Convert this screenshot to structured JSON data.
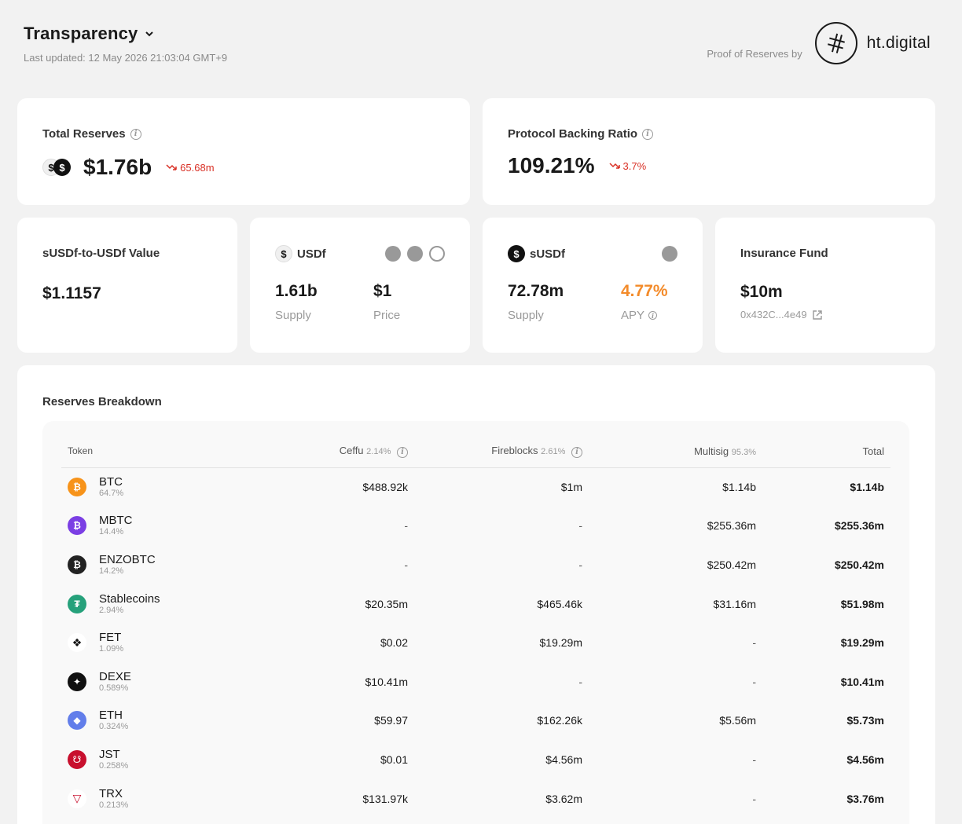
{
  "header": {
    "title": "Transparency",
    "last_updated": "Last updated: 12 May 2026 21:03:04 GMT+9",
    "proof_label": "Proof of Reserves by",
    "partner_name": "ht.digital"
  },
  "cards": {
    "total_reserves": {
      "label": "Total Reserves",
      "value": "$1.76b",
      "change": "65.68m"
    },
    "backing_ratio": {
      "label": "Protocol Backing Ratio",
      "value": "109.21%",
      "change": "3.7%"
    },
    "susdf_value": {
      "label": "sUSDf-to-USDf Value",
      "value": "$1.1157"
    },
    "usdf": {
      "label": "USDf",
      "supply": "1.61b",
      "supply_label": "Supply",
      "price": "$1",
      "price_label": "Price"
    },
    "susdf": {
      "label": "sUSDf",
      "supply": "72.78m",
      "supply_label": "Supply",
      "apy": "4.77%",
      "apy_label": "APY"
    },
    "insurance": {
      "label": "Insurance Fund",
      "value": "$10m",
      "address": "0x432C...4e49"
    }
  },
  "breakdown": {
    "title": "Reserves Breakdown",
    "columns": {
      "token": "Token",
      "ceffu": "Ceffu",
      "ceffu_pct": "2.14%",
      "fireblocks": "Fireblocks",
      "fireblocks_pct": "2.61%",
      "multisig": "Multisig",
      "multisig_pct": "95.3%",
      "total": "Total"
    },
    "rows": [
      {
        "name": "BTC",
        "pct": "64.7%",
        "ceffu": "$488.92k",
        "fireblocks": "$1m",
        "multisig": "$1.14b",
        "total": "$1.14b",
        "color": "#f7931a",
        "glyph": "₿"
      },
      {
        "name": "MBTC",
        "pct": "14.4%",
        "ceffu": "-",
        "fireblocks": "-",
        "multisig": "$255.36m",
        "total": "$255.36m",
        "color": "#7b3fe4",
        "glyph": "₿"
      },
      {
        "name": "ENZOBTC",
        "pct": "14.2%",
        "ceffu": "-",
        "fireblocks": "-",
        "multisig": "$250.42m",
        "total": "$250.42m",
        "color": "#222222",
        "glyph": "₿"
      },
      {
        "name": "Stablecoins",
        "pct": "2.94%",
        "ceffu": "$20.35m",
        "fireblocks": "$465.46k",
        "multisig": "$31.16m",
        "total": "$51.98m",
        "color": "#26a17b",
        "glyph": "₮"
      },
      {
        "name": "FET",
        "pct": "1.09%",
        "ceffu": "$0.02",
        "fireblocks": "$19.29m",
        "multisig": "-",
        "total": "$19.29m",
        "color": "#ffffff",
        "glyph": "❖"
      },
      {
        "name": "DEXE",
        "pct": "0.589%",
        "ceffu": "$10.41m",
        "fireblocks": "-",
        "multisig": "-",
        "total": "$10.41m",
        "color": "#111111",
        "glyph": "✦"
      },
      {
        "name": "ETH",
        "pct": "0.324%",
        "ceffu": "$59.97",
        "fireblocks": "$162.26k",
        "multisig": "$5.56m",
        "total": "$5.73m",
        "color": "#627eea",
        "glyph": "◆"
      },
      {
        "name": "JST",
        "pct": "0.258%",
        "ceffu": "$0.01",
        "fireblocks": "$4.56m",
        "multisig": "-",
        "total": "$4.56m",
        "color": "#c8102e",
        "glyph": "☋"
      },
      {
        "name": "TRX",
        "pct": "0.213%",
        "ceffu": "$131.97k",
        "fireblocks": "$3.62m",
        "multisig": "-",
        "total": "$3.76m",
        "color": "#ffffff",
        "glyph": "▽"
      }
    ]
  },
  "colors": {
    "negative": "#d93025",
    "apy": "#f38b2a"
  }
}
